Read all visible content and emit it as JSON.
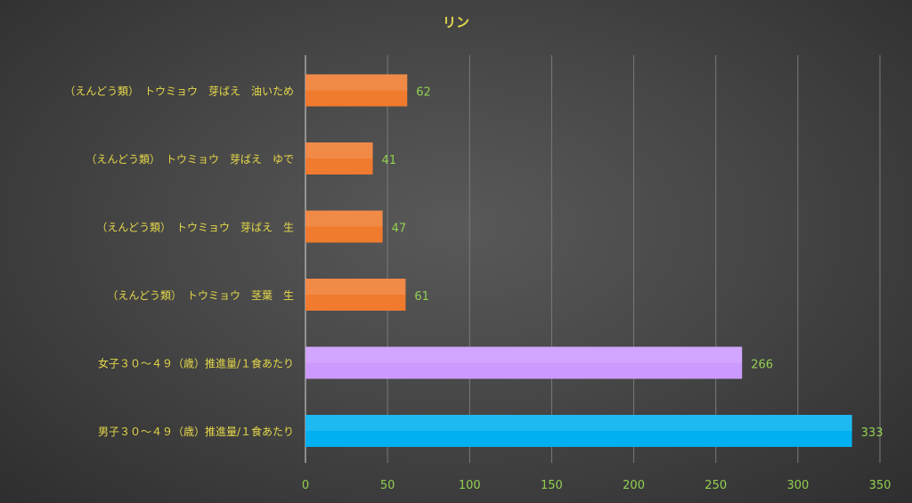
{
  "chart_data": {
    "type": "bar",
    "orientation": "horizontal",
    "title": "リン",
    "categories": [
      "（えんどう類）　トウミョウ　芽ばえ　油いため",
      "（えんどう類）　トウミョウ　芽ばえ　ゆで",
      "（えんどう類）　トウミョウ　芽ばえ　生",
      "（えんどう類）　トウミョウ　茎葉　生",
      "女子３０～４９（歳）推進量/１食あたり",
      "男子３０～４９（歳）推進量/１食あたり"
    ],
    "values": [
      62,
      41,
      47,
      61,
      266,
      333
    ],
    "data_labels": [
      "62",
      "41",
      "47",
      "61",
      "266",
      "333"
    ],
    "bar_colors": [
      "#f07a2e",
      "#f07a2e",
      "#f07a2e",
      "#f07a2e",
      "#cc99ff",
      "#00b0f0"
    ],
    "xlim": [
      0,
      350
    ],
    "xticks": [
      "0",
      "50",
      "100",
      "150",
      "200",
      "250",
      "300",
      "350"
    ],
    "grid": "vertical",
    "label_color": "#e6d84a",
    "tick_color": "#92d050",
    "value_label_color": "#92d050"
  }
}
